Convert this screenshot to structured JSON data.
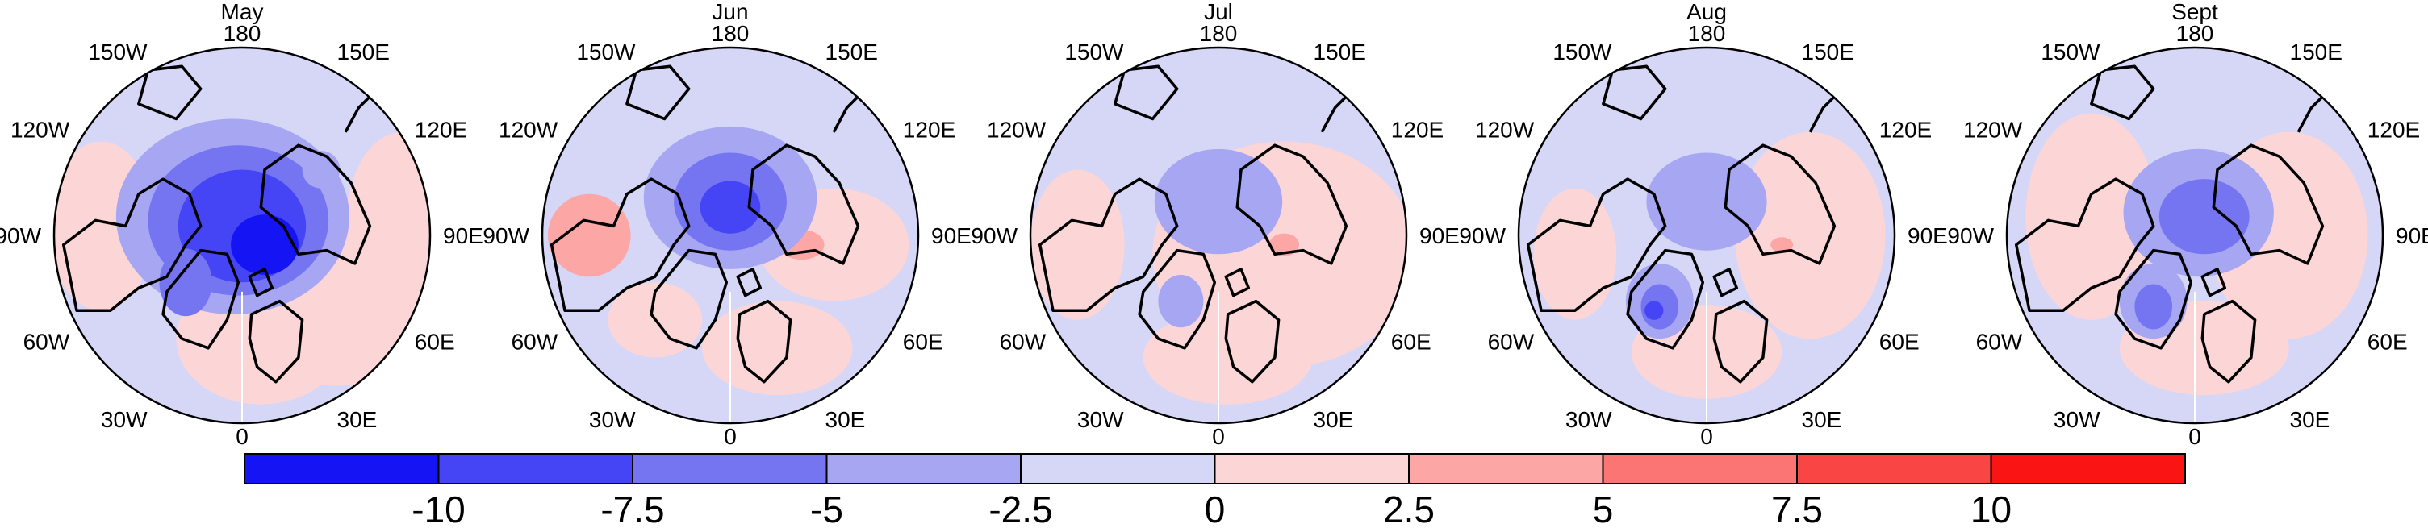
{
  "chart_data": {
    "type": "heatmap",
    "projection": "north polar stereographic",
    "panels": [
      {
        "title": "May"
      },
      {
        "title": "Jun"
      },
      {
        "title": "Jul"
      },
      {
        "title": "Aug"
      },
      {
        "title": "Sept"
      }
    ],
    "longitude_labels": [
      "180",
      "150E",
      "120E",
      "90E",
      "60E",
      "30E",
      "0",
      "30W",
      "60W",
      "90W",
      "120W",
      "150W"
    ],
    "colorbar": {
      "tick_labels": [
        "-10",
        "-7.5",
        "-5",
        "-2.5",
        "0",
        "2.5",
        "5",
        "7.5",
        "10"
      ],
      "ticks": [
        -10,
        -7.5,
        -5,
        -2.5,
        0,
        2.5,
        5,
        7.5,
        10
      ],
      "colors": [
        "#1414f5",
        "#4545f5",
        "#7575f2",
        "#a6a6f2",
        "#d6d6f7",
        "#fcd6d6",
        "#fca6a6",
        "#fc7575",
        "#fa4545",
        "#fa1414"
      ],
      "open_ended": true
    },
    "colors": {
      "land_outline": "#000000",
      "background": "#ffffff"
    }
  }
}
